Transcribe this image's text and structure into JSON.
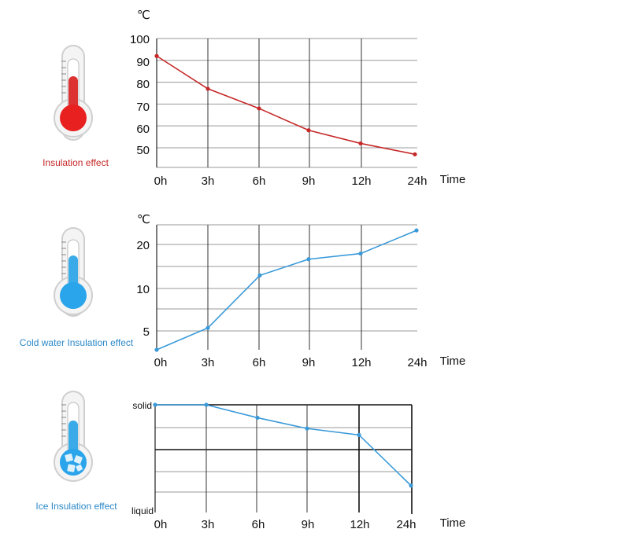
{
  "panels": [
    {
      "caption": "Insulation effect",
      "thermometer": {
        "tube": "#dc3232",
        "bulb": "#e82020",
        "level": 0.62
      }
    },
    {
      "caption": "Cold water Insulation effect",
      "thermometer": {
        "tube": "#3aabe8",
        "bulb": "#2aa4ea",
        "level": 0.58
      }
    },
    {
      "caption": "Ice Insulation effect",
      "thermometer": {
        "tube": "#3aabe8",
        "bulb": "#2aa4ea",
        "level": 0.48,
        "ice": true
      }
    }
  ],
  "colors": {
    "hot_line": "#c62828",
    "cold_line": "#3a9ad9",
    "caption_hot": "#c62828",
    "caption_cold": "#2b88c8",
    "grid": "#333333",
    "grid_thin": "#999999"
  },
  "chart_data": [
    {
      "type": "line",
      "title": "",
      "ylabel": "℃",
      "xlabel": "Time",
      "categories": [
        "0h",
        "3h",
        "6h",
        "9h",
        "12h",
        "24h"
      ],
      "yticks": [
        "100",
        "90",
        "80",
        "70",
        "60",
        "50"
      ],
      "ylim": [
        41,
        100
      ],
      "series": [
        {
          "values": [
            92,
            77,
            68,
            58,
            52,
            47
          ]
        }
      ]
    },
    {
      "type": "line",
      "title": "",
      "ylabel": "℃",
      "xlabel": "Time",
      "categories": [
        "0h",
        "3h",
        "6h",
        "9h",
        "12h",
        "24h"
      ],
      "yticks": [
        "20",
        "10",
        "5"
      ],
      "ylim": [
        0,
        20
      ],
      "series": [
        {
          "values": [
            0,
            3.5,
            11.9,
            14.5,
            15.4,
            19.1
          ]
        }
      ]
    },
    {
      "type": "line",
      "title": "",
      "ylabel": "",
      "xlabel": "Time",
      "categories": [
        "0h",
        "3h",
        "6h",
        "9h",
        "12h",
        "24h"
      ],
      "ycategories": {
        "top": "solid",
        "bottom": "liquid"
      },
      "ylim": [
        0,
        1
      ],
      "series": [
        {
          "values": [
            1.0,
            1.0,
            0.88,
            0.78,
            0.72,
            0.25
          ]
        }
      ]
    }
  ]
}
